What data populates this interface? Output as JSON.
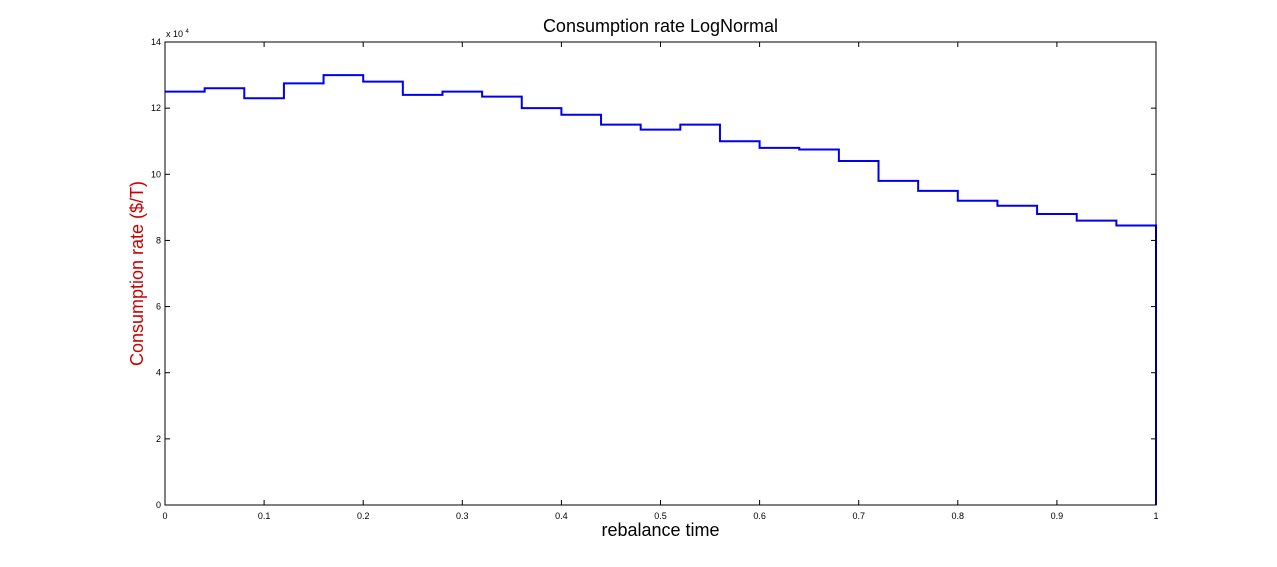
{
  "chart_data": {
    "type": "line",
    "title": "Consumption rate LogNormal",
    "xlabel": "rebalance time",
    "ylabel": "Consumption rate ($/T)",
    "ylabel_color": "#cc0000",
    "line_color": "#0000ee",
    "y_multiplier_base": "x 10",
    "y_multiplier_exp": "4",
    "xlim": [
      0,
      1
    ],
    "ylim": [
      0,
      140000
    ],
    "grid": false,
    "x_ticks": [
      0,
      0.1,
      0.2,
      0.3,
      0.4,
      0.5,
      0.6,
      0.7,
      0.8,
      0.9,
      1
    ],
    "x_tick_labels": [
      "0",
      "0.1",
      "0.2",
      "0.3",
      "0.4",
      "0.5",
      "0.6",
      "0.7",
      "0.8",
      "0.9",
      "1"
    ],
    "y_ticks": [
      0,
      20000,
      40000,
      60000,
      80000,
      100000,
      120000,
      140000
    ],
    "y_tick_labels": [
      "0",
      "2",
      "4",
      "6",
      "8",
      "10",
      "12",
      "14"
    ],
    "series": [
      {
        "style": "step",
        "x": [
          0,
          0.04,
          0.08,
          0.12,
          0.16,
          0.2,
          0.24,
          0.28,
          0.32,
          0.36,
          0.4,
          0.44,
          0.48,
          0.52,
          0.56,
          0.6,
          0.64,
          0.68,
          0.72,
          0.76,
          0.8,
          0.84,
          0.88,
          0.92,
          0.96,
          1.0
        ],
        "values": [
          125000,
          126000,
          123000,
          127500,
          130000,
          128000,
          124000,
          125000,
          123500,
          120000,
          118000,
          115000,
          113500,
          115000,
          110000,
          108000,
          107500,
          104000,
          98000,
          95000,
          92000,
          90500,
          88000,
          86000,
          84500,
          0
        ]
      }
    ]
  }
}
